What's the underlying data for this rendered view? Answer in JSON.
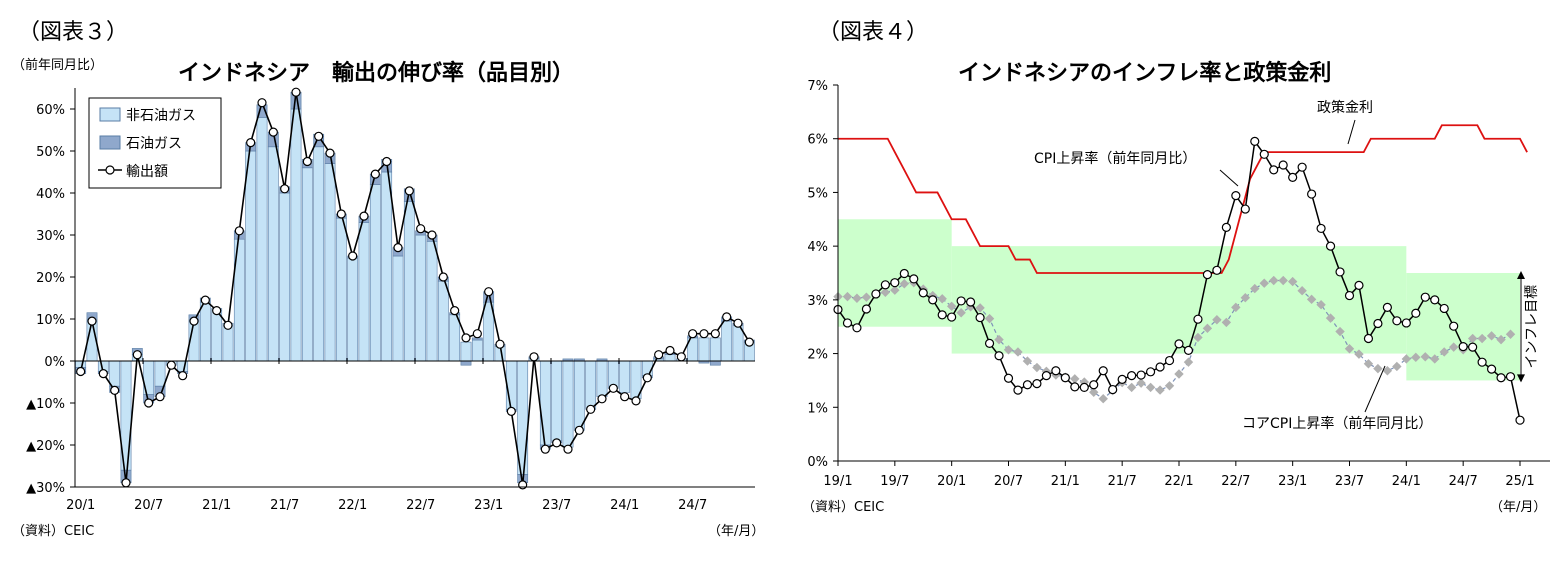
{
  "chart_data": [
    {
      "type": "bar",
      "figure_label": "（図表３）",
      "title": "インドネシア　輸出の伸び率（品目別）",
      "unit_label": "（前年同月比）",
      "source": "（資料）CEIC",
      "x_unit": "（年/月）",
      "ylim": [
        -30,
        65
      ],
      "y_ticks": [
        60,
        50,
        40,
        30,
        20,
        10,
        0,
        -10,
        -20,
        -30
      ],
      "y_tick_labels": [
        "60%",
        "50%",
        "40%",
        "30%",
        "20%",
        "10%",
        "0%",
        "▲10%",
        "▲20%",
        "▲30%"
      ],
      "x_tick_labels": [
        "20/1",
        "20/7",
        "21/1",
        "21/7",
        "22/1",
        "22/7",
        "23/1",
        "23/7",
        "24/1",
        "24/7"
      ],
      "legend": [
        "非石油ガス",
        "石油ガス",
        "輸出額"
      ],
      "series": [
        {
          "name": "非石油ガス",
          "kind": "bar",
          "color": "#c5e3f6",
          "values": [
            -1.5,
            9.5,
            -2.5,
            -6,
            -26,
            1.5,
            -8,
            -6,
            -1,
            -2.5,
            9.5,
            14,
            12.5,
            9,
            29,
            50,
            58,
            51,
            40,
            60,
            46,
            51,
            47,
            34,
            24.5,
            33,
            42,
            45,
            25,
            38,
            30,
            28.5,
            19,
            11,
            4.5,
            5,
            14,
            3.5,
            -11.5,
            -27,
            0.5,
            -20,
            -19,
            -20.5,
            -16.5,
            -11.5,
            -8.5,
            -6.5,
            -7.5,
            -9,
            -3.5,
            0.5,
            1.5,
            0.5,
            5.5,
            5.5,
            5.5,
            9.5,
            8.5,
            4.5
          ]
        },
        {
          "name": "石油ガス",
          "kind": "bar",
          "color": "#8fa8cc",
          "values": [
            -1.5,
            2,
            -0.5,
            -1.5,
            -3,
            1.5,
            -2,
            -2.5,
            0,
            -0.5,
            1.5,
            1,
            0,
            0,
            2,
            2,
            3,
            3.5,
            1.5,
            4,
            2,
            3,
            2.5,
            1,
            0.5,
            1.5,
            2.5,
            3,
            2,
            3,
            1,
            1.5,
            1,
            0.5,
            -1,
            0.5,
            2.5,
            0.5,
            -0.5,
            -2,
            0.5,
            -1,
            -0.5,
            0.5,
            0.5,
            0,
            0.5,
            0,
            0,
            0,
            -0.5,
            0.5,
            0.5,
            0,
            0.5,
            -0.5,
            -1,
            1,
            0.5,
            0.5
          ]
        },
        {
          "name": "輸出額",
          "kind": "line",
          "color": "#000000",
          "values": [
            -2.5,
            9.5,
            -3,
            -7,
            -29,
            1.5,
            -10,
            -8.5,
            -1,
            -3.5,
            9.5,
            14.5,
            12,
            8.5,
            31,
            52,
            61.5,
            54.5,
            41,
            64,
            47.5,
            53.5,
            49.5,
            35,
            25,
            34.5,
            44.5,
            47.5,
            27,
            40.5,
            31.5,
            30,
            20,
            12,
            5.5,
            6.5,
            16.5,
            4,
            -12,
            -29.5,
            1,
            -21,
            -19.5,
            -21,
            -16.5,
            -11.5,
            -9,
            -6.5,
            -8.5,
            -9.5,
            -4,
            1.5,
            2.5,
            1,
            6.5,
            6.5,
            6.5,
            10.5,
            9,
            4.5
          ]
        }
      ]
    },
    {
      "type": "line",
      "figure_label": "（図表４）",
      "title": "インドネシアのインフレ率と政策金利",
      "source": "（資料）CEIC",
      "x_unit": "（年/月）",
      "ylim": [
        0,
        7
      ],
      "y_ticks": [
        7,
        6,
        5,
        4,
        3,
        2,
        1,
        0
      ],
      "y_tick_labels": [
        "7%",
        "6%",
        "5%",
        "4%",
        "3%",
        "2%",
        "1%",
        "0%"
      ],
      "x_tick_labels": [
        "19/1",
        "19/7",
        "20/1",
        "20/7",
        "21/1",
        "21/7",
        "22/1",
        "22/7",
        "23/1",
        "23/7",
        "24/1",
        "24/7",
        "25/1"
      ],
      "annotations": [
        "政策金利",
        "CPI上昇率（前年同月比）",
        "コアCPI上昇率（前年同月比）"
      ],
      "target_label": "インフレ目標",
      "target_band": {
        "x_start": [
          "2019/1",
          "2020/1",
          "2024/1"
        ],
        "x_end": [
          "2020/1",
          "2024/1",
          "2025/1"
        ],
        "low": [
          2.5,
          2.0,
          1.5
        ],
        "high": [
          4.5,
          4.0,
          3.5
        ],
        "color": "#ccffcc"
      },
      "series": [
        {
          "name": "政策金利",
          "color": "#dd1111",
          "values": [
            6,
            6,
            6,
            6,
            6,
            6,
            6,
            6,
            5.75,
            5.5,
            5.25,
            5,
            5,
            5,
            5,
            4.75,
            4.5,
            4.5,
            4.5,
            4.25,
            4,
            4,
            4,
            4,
            4,
            3.75,
            3.75,
            3.75,
            3.5,
            3.5,
            3.5,
            3.5,
            3.5,
            3.5,
            3.5,
            3.5,
            3.5,
            3.5,
            3.5,
            3.5,
            3.5,
            3.5,
            3.5,
            3.5,
            3.5,
            3.5,
            3.5,
            3.5,
            3.5,
            3.5,
            3.5,
            3.5,
            3.5,
            3.5,
            3.5,
            3.75,
            4.25,
            4.75,
            5.25,
            5.5,
            5.75,
            5.75,
            5.75,
            5.75,
            5.75,
            5.75,
            5.75,
            5.75,
            5.75,
            5.75,
            5.75,
            5.75,
            5.75,
            5.75,
            5.75,
            6,
            6,
            6,
            6,
            6,
            6,
            6,
            6,
            6,
            6,
            6.25,
            6.25,
            6.25,
            6.25,
            6.25,
            6.25,
            6,
            6,
            6,
            6,
            6,
            6,
            5.75
          ]
        },
        {
          "name": "CPI上昇率（前年同月比）",
          "color": "#000000",
          "markers": true,
          "values": [
            2.82,
            2.57,
            2.48,
            2.83,
            3.11,
            3.28,
            3.32,
            3.49,
            3.39,
            3.13,
            3.0,
            2.72,
            2.68,
            2.98,
            2.96,
            2.67,
            2.19,
            1.96,
            1.54,
            1.32,
            1.42,
            1.44,
            1.59,
            1.68,
            1.55,
            1.38,
            1.37,
            1.42,
            1.68,
            1.33,
            1.52,
            1.59,
            1.6,
            1.66,
            1.75,
            1.87,
            2.18,
            2.06,
            2.64,
            3.47,
            3.55,
            4.35,
            4.94,
            4.69,
            5.95,
            5.71,
            5.42,
            5.51,
            5.28,
            5.47,
            4.97,
            4.33,
            4.0,
            3.52,
            3.08,
            3.27,
            2.28,
            2.56,
            2.86,
            2.61,
            2.57,
            2.75,
            3.05,
            3.0,
            2.84,
            2.51,
            2.13,
            2.12,
            1.84,
            1.71,
            1.55,
            1.57,
            0.76
          ]
        },
        {
          "name": "コアCPI上昇率（前年同月比）",
          "color": "#aaaaaa",
          "markers": true,
          "dashed": true,
          "values": [
            3.06,
            3.06,
            3.03,
            3.05,
            3.12,
            3.14,
            3.18,
            3.3,
            3.32,
            3.2,
            3.08,
            3.02,
            2.88,
            2.76,
            2.87,
            2.85,
            2.65,
            2.26,
            2.07,
            2.03,
            1.86,
            1.74,
            1.67,
            1.6,
            1.56,
            1.53,
            1.47,
            1.28,
            1.16,
            1.31,
            1.46,
            1.37,
            1.45,
            1.37,
            1.32,
            1.4,
            1.62,
            1.84,
            2.3,
            2.47,
            2.63,
            2.58,
            2.86,
            3.04,
            3.21,
            3.31,
            3.36,
            3.36,
            3.34,
            3.17,
            3.01,
            2.91,
            2.66,
            2.41,
            2.09,
            1.99,
            1.81,
            1.72,
            1.68,
            1.76,
            1.9,
            1.93,
            1.94,
            1.9,
            2.03,
            2.12,
            2.07,
            2.28,
            2.28,
            2.33,
            2.26,
            2.36
          ]
        }
      ]
    }
  ]
}
